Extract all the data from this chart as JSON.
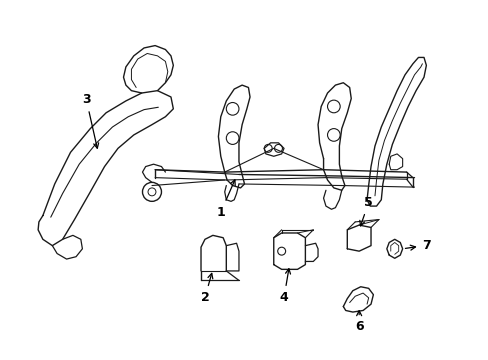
{
  "background_color": "#ffffff",
  "line_color": "#1a1a1a",
  "label_color": "#000000",
  "figsize": [
    4.89,
    3.6
  ],
  "dpi": 100
}
